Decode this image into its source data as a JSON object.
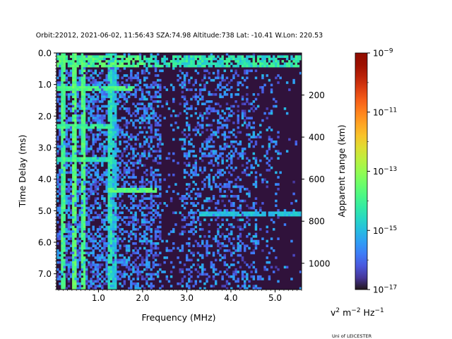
{
  "chart_data": {
    "type": "heatmap",
    "title": "Orbit:22012, 2021-06-02, 11:56:43 SZA:74.98 Altitude:738 Lat: -10.41 W.Lon: 220.53",
    "xlabel": "Frequency (MHz)",
    "ylabel": "Time Delay (ms)",
    "ylabel_right": "Apparent range (km)",
    "xlim": [
      0.05,
      5.6
    ],
    "ylim": [
      0.0,
      7.5
    ],
    "y_inverted": true,
    "x_ticks": [
      1.0,
      2.0,
      3.0,
      4.0,
      5.0
    ],
    "x_tick_labels": [
      "1.0",
      "2.0",
      "3.0",
      "4.0",
      "5.0"
    ],
    "y_ticks": [
      0.0,
      1.0,
      2.0,
      3.0,
      4.0,
      5.0,
      6.0,
      7.0
    ],
    "y_tick_labels": [
      "0.0",
      "1.0",
      "2.0",
      "3.0",
      "4.0",
      "5.0",
      "6.0",
      "7.0"
    ],
    "range_ticks_km": [
      200,
      400,
      600,
      800,
      1000
    ],
    "range_tick_labels": [
      "200",
      "400",
      "600",
      "800",
      "1000"
    ],
    "km_per_ms": 150,
    "colorbar": {
      "scale": "log",
      "min_exp": -17,
      "max_exp": -9,
      "tick_exps": [
        -17,
        -15,
        -13,
        -11,
        -9
      ],
      "tick_bases": [
        "10",
        "10",
        "10",
        "10",
        "10"
      ],
      "tick_exp_labels": [
        "−17",
        "−15",
        "−13",
        "−11",
        "−9"
      ],
      "colormap": "turbo",
      "background_color": "#30123b"
    },
    "units": {
      "v": "v",
      "v_sup": "2",
      "m": " m",
      "m_sup": "−2",
      "hz": " Hz",
      "hz_sup": "−1"
    },
    "grid": false,
    "features_log10": [
      {
        "kind": "plasma-line",
        "freq_mhz": 0.2,
        "level": -13.5
      },
      {
        "kind": "plasma-line",
        "freq_mhz": 0.45,
        "level": -13.2
      },
      {
        "kind": "plasma-line",
        "freq_mhz": 0.65,
        "level": -13.4
      },
      {
        "kind": "plasma-line",
        "freq_mhz": 1.25,
        "level": -14.0
      },
      {
        "kind": "plasma-line",
        "freq_mhz": 1.35,
        "level": -14.5
      },
      {
        "kind": "top-echo",
        "delay_ms": 0.25,
        "level": -13.3
      },
      {
        "kind": "echo",
        "delay_ms": 1.15,
        "freq_range": [
          0.05,
          1.8
        ],
        "level": -13.5
      },
      {
        "kind": "echo",
        "delay_ms": 2.3,
        "freq_range": [
          0.05,
          1.35
        ],
        "level": -13.8
      },
      {
        "kind": "echo",
        "delay_ms": 3.4,
        "freq_range": [
          0.05,
          1.3
        ],
        "level": -14.0
      },
      {
        "kind": "echo",
        "delay_ms": 4.35,
        "freq_range": [
          1.2,
          2.3
        ],
        "level": -13.3
      },
      {
        "kind": "echo",
        "delay_ms": 5.1,
        "freq_range": [
          3.3,
          5.6
        ],
        "level": -14.6
      }
    ]
  },
  "footer": {
    "credit": "Uni of LEICESTER"
  }
}
